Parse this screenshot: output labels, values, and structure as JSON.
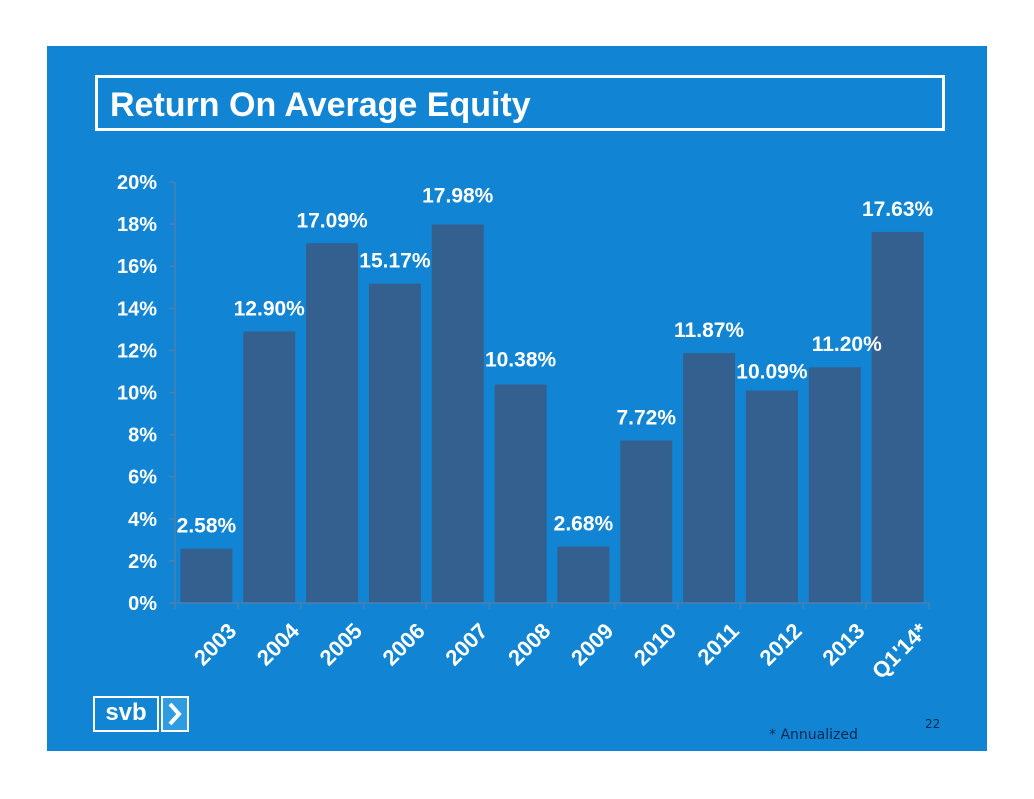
{
  "slide": {
    "title": "Return On Average Equity",
    "footnote": "* Annualized",
    "page_number": "22",
    "logo_text": "svb",
    "logo_icon": "chevron-right-icon",
    "colors": {
      "background": "#1284d4",
      "bar": "#33608f",
      "text": "#ffffff"
    }
  },
  "chart_data": {
    "type": "bar",
    "title": "Return On Average Equity",
    "categories": [
      "2003",
      "2004",
      "2005",
      "2006",
      "2007",
      "2008",
      "2009",
      "2010",
      "2011",
      "2012",
      "2013",
      "Q1'14*"
    ],
    "values": [
      2.58,
      12.9,
      17.09,
      15.17,
      17.98,
      10.38,
      2.68,
      7.72,
      11.87,
      10.09,
      11.2,
      17.63
    ],
    "data_labels": [
      "2.58%",
      "12.90%",
      "17.09%",
      "15.17%",
      "17.98%",
      "10.38%",
      "2.68%",
      "7.72%",
      "11.87%",
      "10.09%",
      "11.20%",
      "17.63%"
    ],
    "y_ticks": [
      "0%",
      "2%",
      "4%",
      "6%",
      "8%",
      "10%",
      "12%",
      "14%",
      "16%",
      "18%",
      "20%"
    ],
    "ylim": [
      0,
      20
    ],
    "xlabel": "",
    "ylabel": "",
    "grid": false,
    "legend": "none"
  }
}
